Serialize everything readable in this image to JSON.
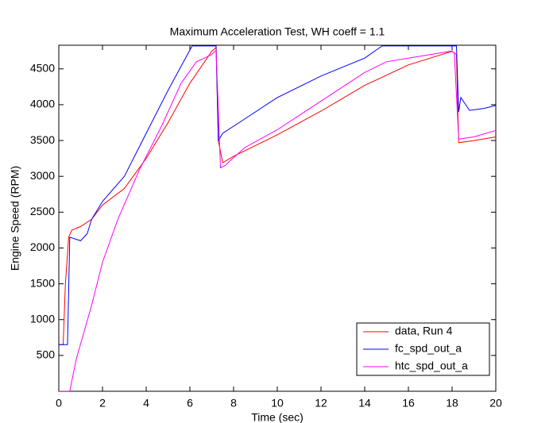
{
  "chart_data": {
    "type": "line",
    "title": "Maximum Acceleration Test, WH coeff = 1.1",
    "x_label": "Time (sec)",
    "y_label": "Engine Speed (RPM)",
    "xlim": [
      0,
      20
    ],
    "ylim": [
      0,
      4830
    ],
    "xticks": [
      0,
      2,
      4,
      6,
      8,
      10,
      12,
      14,
      16,
      18,
      20
    ],
    "yticks": [
      500,
      1000,
      1500,
      2000,
      2500,
      3000,
      3500,
      4000,
      4500
    ],
    "legend": "lower right",
    "series": [
      {
        "name": "data, Run 4",
        "color": "#ff0000",
        "x": [
          0,
          0.2,
          0.3,
          0.45,
          0.6,
          1,
          1.5,
          2,
          3,
          4,
          5,
          6,
          7,
          7.2,
          7.3,
          7.5,
          8,
          10,
          12,
          14,
          16,
          18,
          18.2,
          18.3,
          19,
          20
        ],
        "values": [
          650,
          650,
          1500,
          2150,
          2250,
          2300,
          2400,
          2600,
          2830,
          3250,
          3750,
          4300,
          4745,
          4800,
          3500,
          3190,
          3280,
          3580,
          3910,
          4270,
          4555,
          4745,
          4700,
          3470,
          3500,
          3550
        ]
      },
      {
        "name": "fc_spd_out_a",
        "color": "#0000ff",
        "x": [
          0,
          0.4,
          0.5,
          1,
          1.3,
          1.5,
          2,
          3,
          4,
          5,
          6.1,
          7.2,
          7.3,
          7.5,
          8.5,
          10,
          12,
          14,
          14.8,
          18.2,
          18.3,
          18.4,
          18.8,
          19.5,
          20
        ],
        "values": [
          650,
          650,
          2150,
          2100,
          2200,
          2400,
          2650,
          3000,
          3600,
          4200,
          4820,
          4820,
          3500,
          3600,
          3800,
          4100,
          4400,
          4650,
          4820,
          4820,
          3900,
          4100,
          3920,
          3950,
          3990
        ]
      },
      {
        "name": "htc_spd_out_a",
        "color": "#ff00ff",
        "x": [
          0,
          0.5,
          0.8,
          1.5,
          2,
          2.7,
          3.7,
          4.7,
          5.6,
          6.3,
          7,
          7.2,
          7.4,
          7.6,
          8.5,
          10,
          12,
          14,
          15,
          17,
          18,
          18.1,
          18.3,
          19,
          20
        ],
        "values": [
          0,
          0,
          450,
          1200,
          1800,
          2400,
          3100,
          3700,
          4300,
          4600,
          4700,
          4760,
          3120,
          3150,
          3400,
          3650,
          4050,
          4450,
          4600,
          4700,
          4750,
          4720,
          3520,
          3550,
          3640
        ]
      }
    ]
  }
}
